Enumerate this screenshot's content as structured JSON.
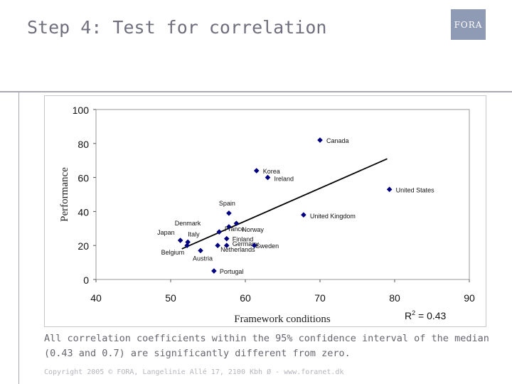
{
  "slide": {
    "title": "Step 4: Test for correlation",
    "logo": "FORA",
    "caption": "All correlation coefficients within the 95% confidence interval of the median (0.43 and 0.7) are significantly different from zero.",
    "footer": "Copyright 2005 © FORA, Langelinie Allé 17, 2100 Kbh Ø - www.foranet.dk"
  },
  "chart_data": {
    "type": "scatter",
    "xlabel": "Framework conditions",
    "ylabel": "Performance",
    "xlim": [
      40,
      90
    ],
    "ylim": [
      0,
      100
    ],
    "xticks": [
      40,
      50,
      60,
      70,
      80,
      90
    ],
    "yticks": [
      0,
      20,
      40,
      60,
      80,
      100
    ],
    "r2_label": "R",
    "r2_sup": "2",
    "r2_value": " = 0.43",
    "marker_color": "#000080",
    "points": [
      {
        "label": "Canada",
        "x": 70,
        "y": 82
      },
      {
        "label": "Korea",
        "x": 61.5,
        "y": 64
      },
      {
        "label": "Ireland",
        "x": 63,
        "y": 60
      },
      {
        "label": "United States",
        "x": 79.3,
        "y": 53
      },
      {
        "label": "Spain",
        "x": 57.8,
        "y": 39
      },
      {
        "label": "Norway",
        "x": 58.8,
        "y": 33
      },
      {
        "label": "France",
        "x": 57.8,
        "y": 31
      },
      {
        "label": "United Kingdom",
        "x": 67.8,
        "y": 38
      },
      {
        "label": "Denmark",
        "x": 56.5,
        "y": 28
      },
      {
        "label": "Japan",
        "x": 51.3,
        "y": 23
      },
      {
        "label": "Italy",
        "x": 52.3,
        "y": 22
      },
      {
        "label": "Belgium",
        "x": 52.2,
        "y": 20
      },
      {
        "label": "Finland",
        "x": 57.5,
        "y": 24
      },
      {
        "label": "Germany",
        "x": 57.5,
        "y": 20
      },
      {
        "label": "Sweden",
        "x": 61.2,
        "y": 20
      },
      {
        "label": "Netherlands",
        "x": 56.3,
        "y": 20
      },
      {
        "label": "Austria",
        "x": 54,
        "y": 17
      },
      {
        "label": "Portugal",
        "x": 55.8,
        "y": 5
      }
    ],
    "trendline": {
      "x": [
        51.5,
        79
      ],
      "y": [
        18,
        71
      ]
    }
  }
}
